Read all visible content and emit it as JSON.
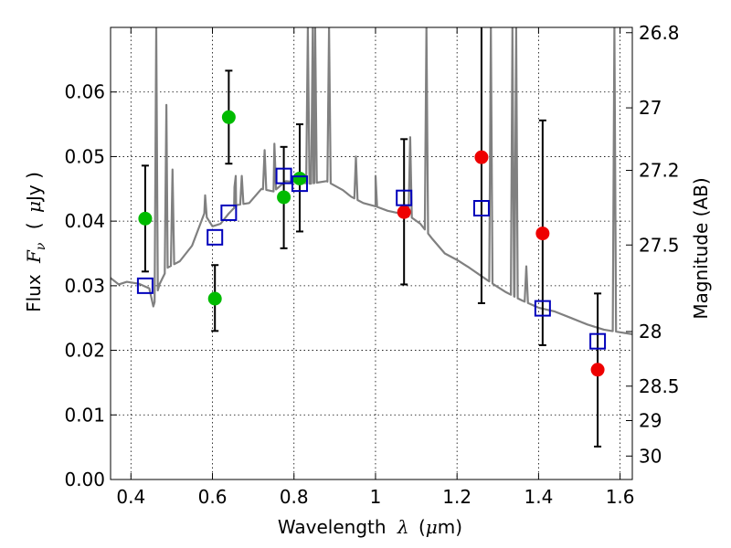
{
  "chart_data": {
    "type": "scatter",
    "xlabel_text": "Wavelength",
    "xlabel_symbol": "λ",
    "xlabel_unit_open": "(",
    "xlabel_unit_mu": "μ",
    "xlabel_unit_rest": "m)",
    "ylabel_text": "Flux",
    "ylabel_symbol": "F",
    "ylabel_subscript": "ν",
    "ylabel_unit_open": "(",
    "ylabel_unit_mu": "μ",
    "ylabel_unit_rest": "Jy )",
    "y2label": "Magnitude (AB)",
    "xlim": [
      0.35,
      1.63
    ],
    "ylim": [
      0.0,
      0.07
    ],
    "x_ticks": [
      0.4,
      0.6,
      0.8,
      1.0,
      1.2,
      1.4,
      1.6
    ],
    "x_tick_labels": [
      "0.4",
      "0.6",
      "0.8",
      "1",
      "1.2",
      "1.4",
      "1.6"
    ],
    "y_ticks": [
      0.0,
      0.01,
      0.02,
      0.03,
      0.04,
      0.05,
      0.06
    ],
    "y_tick_labels": [
      "0.00",
      "0.01",
      "0.02",
      "0.03",
      "0.04",
      "0.05",
      "0.06"
    ],
    "y2_ticks": [
      26.8,
      27,
      27.2,
      27.5,
      28,
      28.5,
      29,
      30
    ],
    "y2_tick_labels": [
      "26.8",
      "27",
      "27.2",
      "27.5",
      "28",
      "28.5",
      "29",
      "30"
    ],
    "grid": true,
    "colors": {
      "template": "#808080",
      "green": "#00bb00",
      "red": "#ee0000",
      "model": "#0000bb",
      "errorbar": "#000000"
    },
    "series": [
      {
        "marker": "circle",
        "color": "green",
        "points": [
          {
            "x": 0.435,
            "y": 0.0404,
            "err_low": 0.0082,
            "err_high": 0.0082
          },
          {
            "x": 0.606,
            "y": 0.028,
            "err_low": 0.005,
            "err_high": 0.0052
          },
          {
            "x": 0.64,
            "y": 0.0561,
            "err_low": 0.0072,
            "err_high": 0.0072
          },
          {
            "x": 0.775,
            "y": 0.0437,
            "err_low": 0.0079,
            "err_high": 0.0078
          },
          {
            "x": 0.814,
            "y": 0.0466,
            "err_low": 0.0082,
            "err_high": 0.0084
          }
        ]
      },
      {
        "marker": "circle",
        "color": "red",
        "points": [
          {
            "x": 1.07,
            "y": 0.0414,
            "err_low": 0.0112,
            "err_high": 0.0113
          },
          {
            "x": 1.26,
            "y": 0.0499,
            "err_low": 0.0226,
            "err_high": 0.0201
          },
          {
            "x": 1.41,
            "y": 0.0381,
            "err_low": 0.0173,
            "err_high": 0.0175
          },
          {
            "x": 1.545,
            "y": 0.017,
            "err_low": 0.0119,
            "err_high": 0.0118
          }
        ]
      },
      {
        "marker": "open-square",
        "color": "model",
        "points": [
          {
            "x": 0.435,
            "y": 0.03
          },
          {
            "x": 0.606,
            "y": 0.0375
          },
          {
            "x": 0.64,
            "y": 0.0413
          },
          {
            "x": 0.775,
            "y": 0.047
          },
          {
            "x": 0.814,
            "y": 0.0458
          },
          {
            "x": 1.07,
            "y": 0.0436
          },
          {
            "x": 1.26,
            "y": 0.042
          },
          {
            "x": 1.41,
            "y": 0.0265
          },
          {
            "x": 1.545,
            "y": 0.0214
          }
        ]
      }
    ],
    "template_spectrum": {
      "color": "template",
      "continuum": [
        [
          0.35,
          0.0312
        ],
        [
          0.37,
          0.0302
        ],
        [
          0.39,
          0.0306
        ],
        [
          0.42,
          0.0303
        ],
        [
          0.445,
          0.0296
        ],
        [
          0.455,
          0.0268
        ],
        [
          0.47,
          0.0302
        ],
        [
          0.49,
          0.0328
        ],
        [
          0.52,
          0.0338
        ],
        [
          0.55,
          0.0362
        ],
        [
          0.58,
          0.0412
        ],
        [
          0.6,
          0.0392
        ],
        [
          0.62,
          0.0396
        ],
        [
          0.64,
          0.0412
        ],
        [
          0.66,
          0.0425
        ],
        [
          0.69,
          0.0428
        ],
        [
          0.72,
          0.045
        ],
        [
          0.75,
          0.0446
        ],
        [
          0.78,
          0.0462
        ],
        [
          0.81,
          0.046
        ],
        [
          0.84,
          0.0458
        ],
        [
          0.88,
          0.0462
        ],
        [
          0.92,
          0.0448
        ],
        [
          0.94,
          0.0438
        ],
        [
          0.97,
          0.0428
        ],
        [
          1.0,
          0.0423
        ],
        [
          1.03,
          0.0416
        ],
        [
          1.06,
          0.0412
        ],
        [
          1.09,
          0.0405
        ],
        [
          1.11,
          0.0396
        ],
        [
          1.14,
          0.0372
        ],
        [
          1.17,
          0.035
        ],
        [
          1.2,
          0.034
        ],
        [
          1.23,
          0.0328
        ],
        [
          1.26,
          0.0315
        ],
        [
          1.29,
          0.0302
        ],
        [
          1.32,
          0.029
        ],
        [
          1.36,
          0.0277
        ],
        [
          1.4,
          0.0266
        ],
        [
          1.44,
          0.026
        ],
        [
          1.48,
          0.025
        ],
        [
          1.52,
          0.024
        ],
        [
          1.56,
          0.0232
        ],
        [
          1.58,
          0.023
        ],
        [
          1.6,
          0.0228
        ],
        [
          1.63,
          0.0225
        ]
      ],
      "lines": [
        [
          0.462,
          0.07
        ],
        [
          0.487,
          0.058
        ],
        [
          0.502,
          0.048
        ],
        [
          0.582,
          0.044
        ],
        [
          0.654,
          0.0453
        ],
        [
          0.657,
          0.047
        ],
        [
          0.672,
          0.047
        ],
        [
          0.728,
          0.051
        ],
        [
          0.752,
          0.052
        ],
        [
          0.834,
          0.07
        ],
        [
          0.846,
          0.07
        ],
        [
          0.852,
          0.07
        ],
        [
          0.886,
          0.07
        ],
        [
          0.952,
          0.05
        ],
        [
          1.0,
          0.047
        ],
        [
          1.085,
          0.053
        ],
        [
          1.125,
          0.07
        ],
        [
          1.283,
          0.07
        ],
        [
          1.336,
          0.07
        ],
        [
          1.345,
          0.07
        ],
        [
          1.37,
          0.033
        ],
        [
          1.586,
          0.07
        ]
      ]
    }
  }
}
